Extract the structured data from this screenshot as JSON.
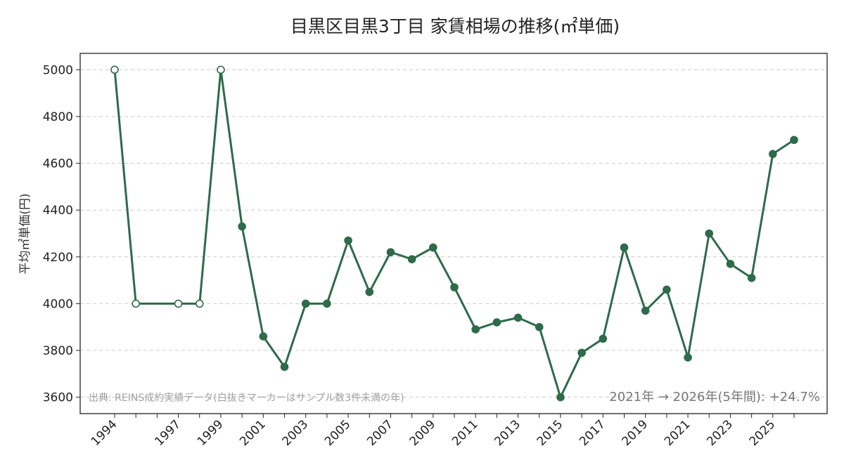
{
  "chart_data": {
    "type": "line",
    "title": "目黒区目黒3丁目 家賃相場の推移(㎡単価)",
    "xlabel": "",
    "ylabel": "平均㎡単価(円)",
    "ylim": [
      3530,
      5070
    ],
    "yticks": [
      3600,
      3800,
      4000,
      4200,
      4400,
      4600,
      4800,
      5000
    ],
    "xtick_labels": [
      "1994",
      "1997",
      "1999",
      "2001",
      "2003",
      "2005",
      "2007",
      "2009",
      "2011",
      "2013",
      "2015",
      "2017",
      "2019",
      "2021",
      "2023",
      "2025"
    ],
    "grid": "horizontal dashed",
    "series": [
      {
        "color": "#2e6b4a",
        "points": [
          {
            "x": 1994,
            "y": 5000,
            "hollow": true
          },
          {
            "x": 1995,
            "y": 4000,
            "hollow": true
          },
          {
            "x": 1997,
            "y": 4000,
            "hollow": true
          },
          {
            "x": 1998,
            "y": 4000,
            "hollow": true
          },
          {
            "x": 1999,
            "y": 5000,
            "hollow": true
          },
          {
            "x": 2000,
            "y": 4330,
            "hollow": false
          },
          {
            "x": 2001,
            "y": 3860,
            "hollow": false
          },
          {
            "x": 2002,
            "y": 3730,
            "hollow": false
          },
          {
            "x": 2003,
            "y": 4000,
            "hollow": false
          },
          {
            "x": 2004,
            "y": 4000,
            "hollow": false
          },
          {
            "x": 2005,
            "y": 4270,
            "hollow": false
          },
          {
            "x": 2006,
            "y": 4050,
            "hollow": false
          },
          {
            "x": 2007,
            "y": 4220,
            "hollow": false
          },
          {
            "x": 2008,
            "y": 4190,
            "hollow": false
          },
          {
            "x": 2009,
            "y": 4240,
            "hollow": false
          },
          {
            "x": 2010,
            "y": 4070,
            "hollow": false
          },
          {
            "x": 2011,
            "y": 3890,
            "hollow": false
          },
          {
            "x": 2012,
            "y": 3920,
            "hollow": false
          },
          {
            "x": 2013,
            "y": 3940,
            "hollow": false
          },
          {
            "x": 2014,
            "y": 3900,
            "hollow": false
          },
          {
            "x": 2015,
            "y": 3600,
            "hollow": false
          },
          {
            "x": 2016,
            "y": 3790,
            "hollow": false
          },
          {
            "x": 2017,
            "y": 3850,
            "hollow": false
          },
          {
            "x": 2018,
            "y": 4240,
            "hollow": false
          },
          {
            "x": 2019,
            "y": 3970,
            "hollow": false
          },
          {
            "x": 2020,
            "y": 4060,
            "hollow": false
          },
          {
            "x": 2021,
            "y": 3770,
            "hollow": false
          },
          {
            "x": 2022,
            "y": 4300,
            "hollow": false
          },
          {
            "x": 2023,
            "y": 4170,
            "hollow": false
          },
          {
            "x": 2024,
            "y": 4110,
            "hollow": false
          },
          {
            "x": 2025,
            "y": 4640,
            "hollow": false
          },
          {
            "x": 2026,
            "y": 4700,
            "hollow": false
          }
        ]
      }
    ],
    "annotations": {
      "source": "出典: REINS成約実績データ(白抜きマーカーはサンプル数3件未満の年)",
      "change": "2021年 → 2026年(5年間): +24.7%"
    }
  }
}
